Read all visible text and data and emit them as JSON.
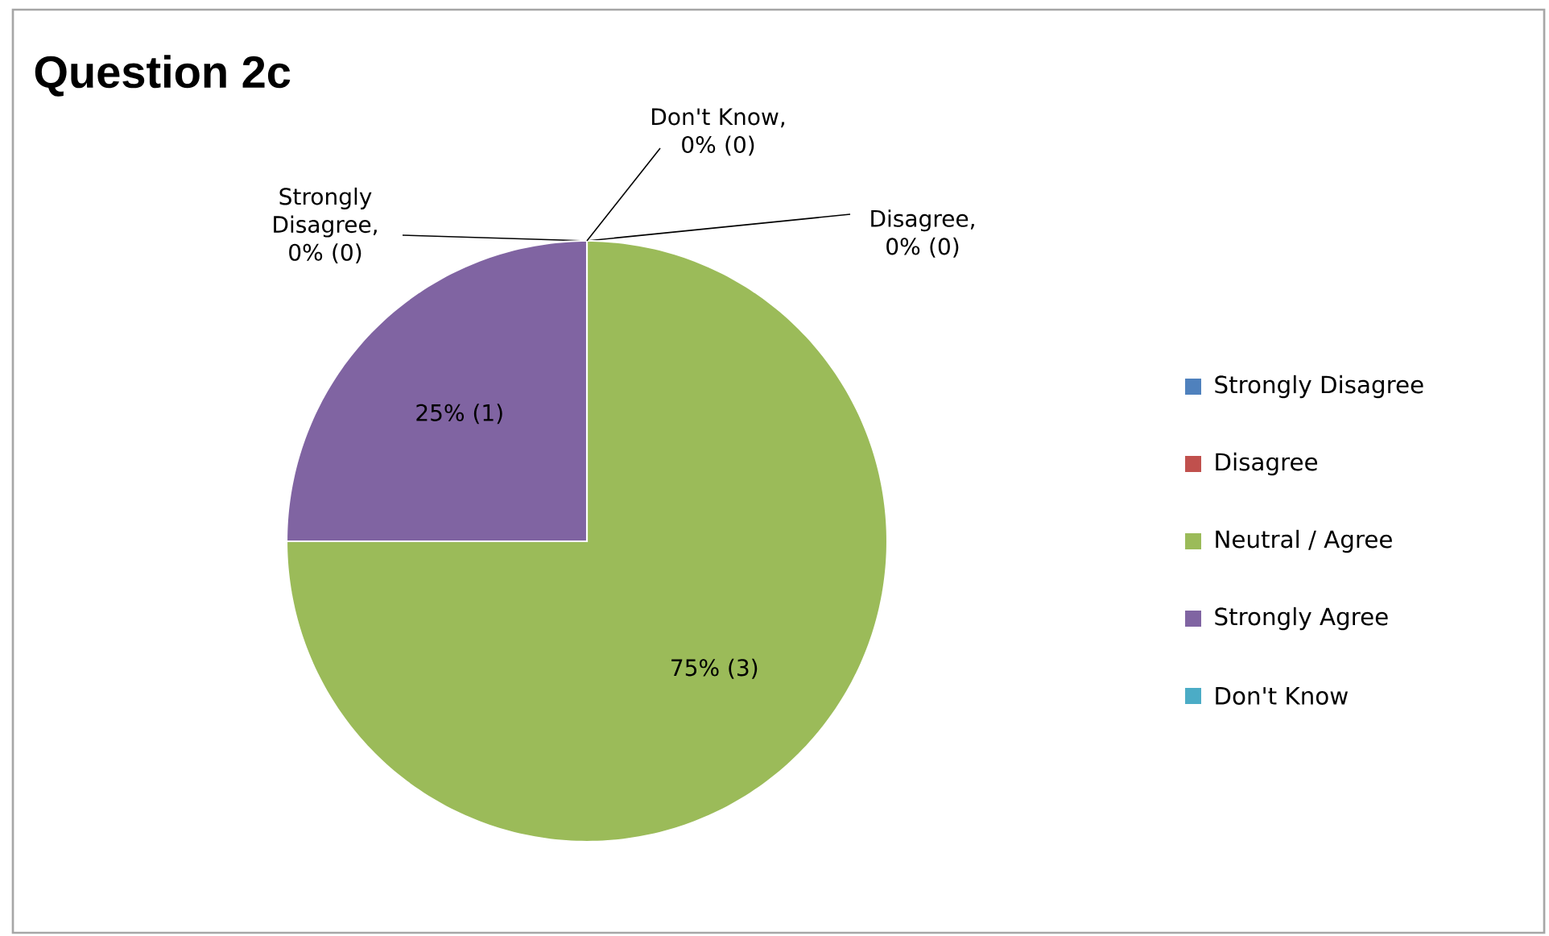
{
  "chart_data": {
    "type": "pie",
    "title": "Question 2c",
    "categories": [
      "Strongly Disagree",
      "Disagree",
      "Neutral / Agree",
      "Strongly Agree",
      "Don't Know"
    ],
    "values": [
      0,
      0,
      3,
      1,
      0
    ],
    "colors": [
      "#4f81bd",
      "#c0504d",
      "#9bbb59",
      "#8064a2",
      "#4bacc6"
    ],
    "value_labels": [
      "Strongly Disagree, 0% (0)",
      "Disagree, 0% (0)",
      "75% (3)",
      "25% (1)",
      "Don't Know, 0% (0)"
    ],
    "legend": "right"
  }
}
